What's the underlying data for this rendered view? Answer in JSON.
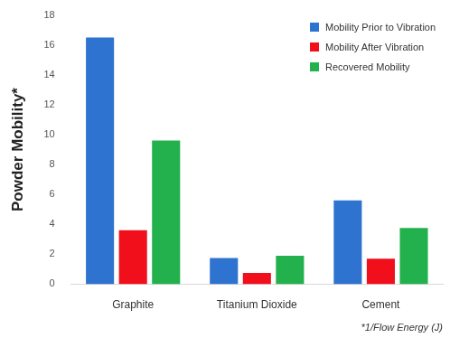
{
  "chart_data": {
    "type": "bar",
    "categories": [
      "Graphite",
      "Titanium Dioxide",
      "Cement"
    ],
    "series": [
      {
        "name": "Mobility Prior to Vibration",
        "color": "#2e73d0",
        "values": [
          16.5,
          1.75,
          5.6
        ]
      },
      {
        "name": "Mobility After Vibration",
        "color": "#f00f1a",
        "values": [
          3.6,
          0.75,
          1.7
        ]
      },
      {
        "name": "Recovered Mobility",
        "color": "#22b14c",
        "values": [
          9.6,
          1.9,
          3.75
        ]
      }
    ],
    "y_label": "Powder Mobility*",
    "footnote": "*1/Flow Energy (J)",
    "ylim": [
      0,
      18
    ],
    "yticks": [
      0,
      2,
      4,
      6,
      8,
      10,
      12,
      14,
      16,
      18
    ],
    "grid": false,
    "legend": "upper right"
  }
}
